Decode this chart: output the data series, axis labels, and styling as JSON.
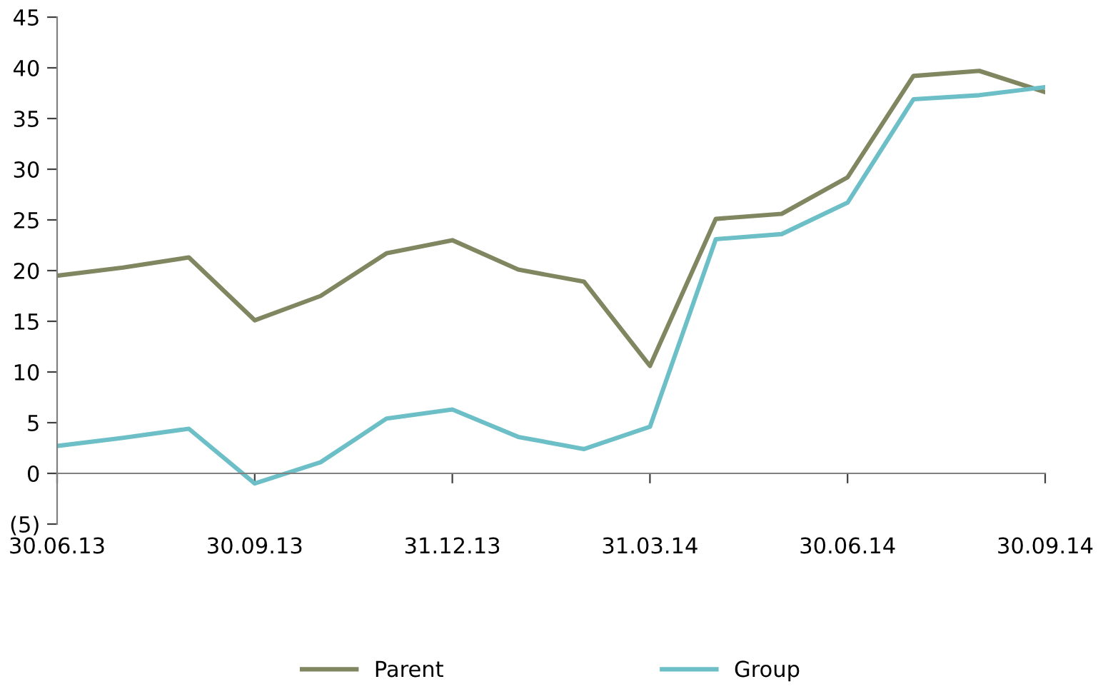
{
  "chart_data": {
    "type": "line",
    "categories": [
      "30.06.13",
      null,
      null,
      "30.09.13",
      null,
      null,
      "31.12.13",
      null,
      null,
      "31.03.14",
      null,
      null,
      "30.06.14",
      null,
      null,
      "30.09.14"
    ],
    "series": [
      {
        "name": "Parent",
        "color": "#7f8660",
        "values": [
          19.5,
          20.3,
          21.3,
          15.1,
          17.5,
          21.7,
          23.0,
          20.1,
          18.9,
          10.6,
          25.1,
          25.6,
          29.2,
          39.2,
          39.7,
          37.6
        ]
      },
      {
        "name": "Group",
        "color": "#6cbfc6",
        "values": [
          2.7,
          3.5,
          4.4,
          -1.0,
          1.1,
          5.4,
          6.3,
          3.6,
          2.4,
          4.6,
          23.1,
          23.6,
          26.7,
          36.9,
          37.3,
          38.1
        ]
      }
    ],
    "ylim": [
      -5,
      45
    ],
    "yticks": [
      {
        "value": -5,
        "label": "(5)"
      },
      0,
      5,
      10,
      15,
      20,
      25,
      30,
      35,
      40,
      45
    ],
    "legend": "bottom",
    "marker": "none",
    "line_style": "solid"
  }
}
